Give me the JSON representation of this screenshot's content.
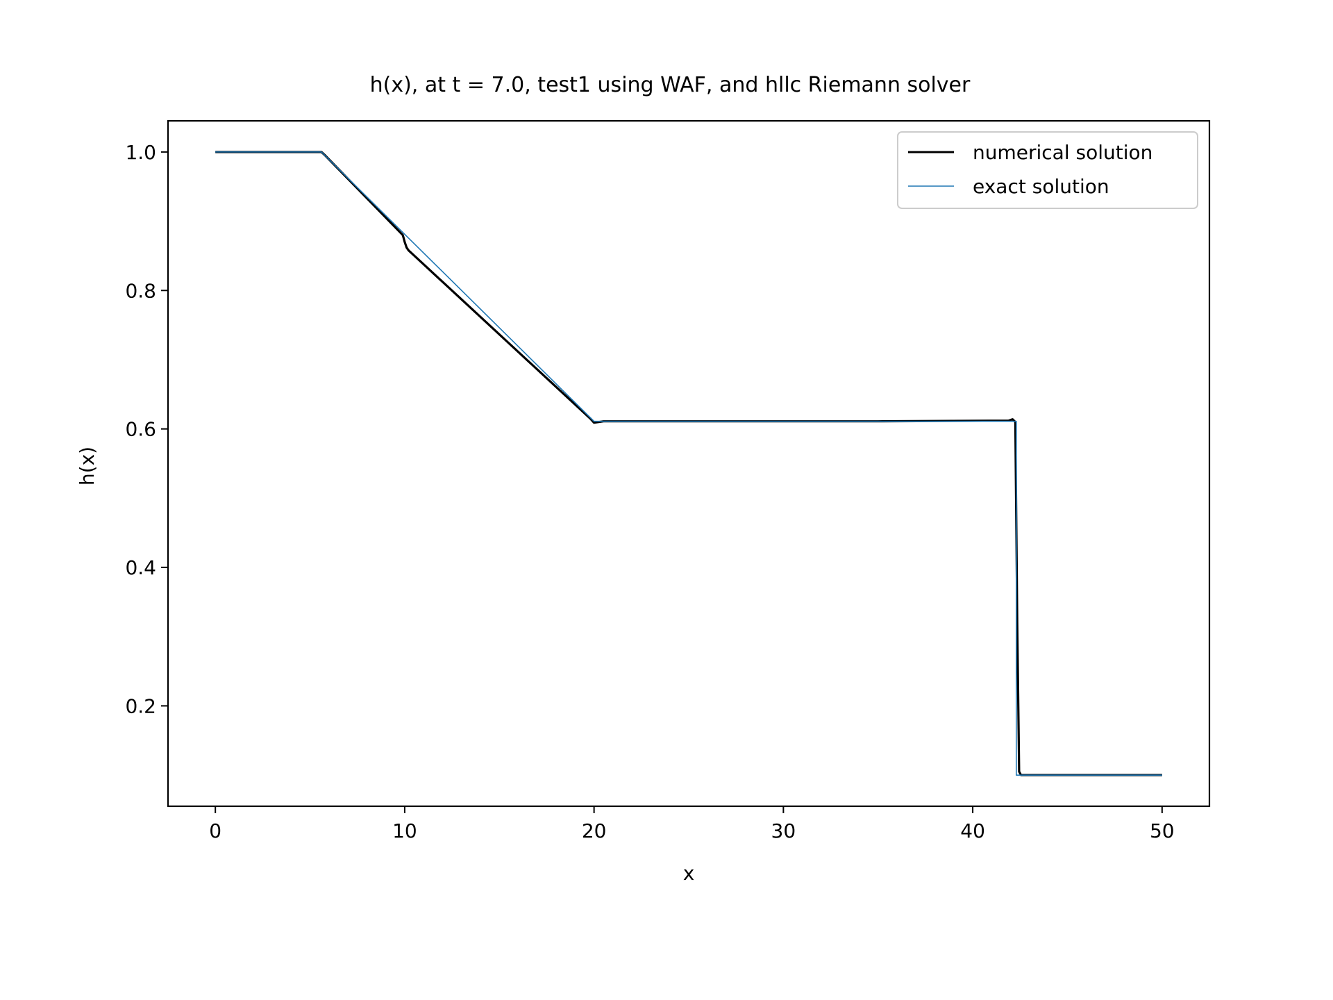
{
  "chart_data": {
    "type": "line",
    "title": "h(x), at t = 7.0, test1 using WAF, and hllc Riemann solver",
    "xlabel": "x",
    "ylabel": "h(x)",
    "xlim": [
      -2.5,
      52.5
    ],
    "ylim": [
      0.055,
      1.045
    ],
    "xticks": [
      0,
      10,
      20,
      30,
      40,
      50
    ],
    "xtick_labels": [
      "0",
      "10",
      "20",
      "30",
      "40",
      "50"
    ],
    "yticks": [
      0.2,
      0.4,
      0.6,
      0.8,
      1.0
    ],
    "ytick_labels": [
      "0.2",
      "0.4",
      "0.6",
      "0.8",
      "1.0"
    ],
    "grid": false,
    "legend_position": "top-right",
    "series": [
      {
        "name": "numerical solution",
        "color": "#000000",
        "x": [
          0,
          5.6,
          5.8,
          9.9,
          10.0,
          10.1,
          10.2,
          19.8,
          20.0,
          20.5,
          25,
          30,
          35,
          41.9,
          42.1,
          42.25,
          42.35,
          42.45,
          42.55,
          50
        ],
        "y": [
          1.0,
          1.0,
          0.995,
          0.88,
          0.87,
          0.862,
          0.858,
          0.615,
          0.609,
          0.611,
          0.611,
          0.611,
          0.611,
          0.612,
          0.614,
          0.61,
          0.322,
          0.105,
          0.1,
          0.1
        ]
      },
      {
        "name": "exact solution",
        "color": "#1f77b4",
        "x": [
          0,
          5.6,
          20.0,
          42.3,
          42.3,
          50
        ],
        "y": [
          1.0,
          1.0,
          0.611,
          0.611,
          0.1,
          0.1
        ]
      }
    ]
  }
}
